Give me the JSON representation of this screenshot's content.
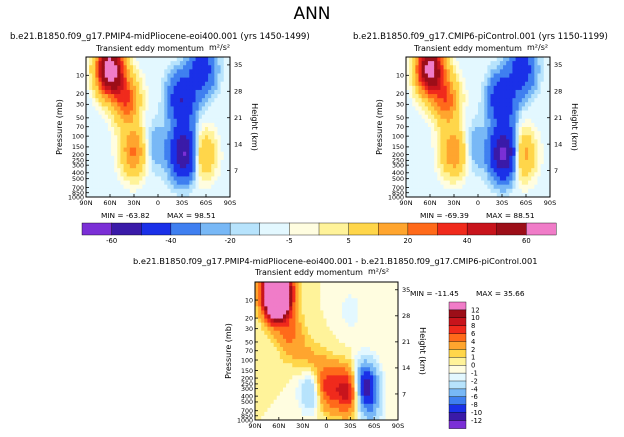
{
  "page": {
    "title": "ANN"
  },
  "colors": {
    "palette": [
      "#7b2fd6",
      "#3a1aa8",
      "#1a30e8",
      "#3f7ff0",
      "#78b8f6",
      "#b7e3fc",
      "#e3f8ff",
      "#fffde0",
      "#fff39a",
      "#ffd64a",
      "#ffa52e",
      "#ff6a1a",
      "#f02a1c",
      "#c8141c",
      "#9c0e18",
      "#f07cc8"
    ]
  },
  "chart_data": [
    {
      "type": "contour",
      "name": "panel-left",
      "title": "b.e21.B1850.f09_g17.PMIP4-midPliocene-eoi400.001  (yrs 1450-1499)",
      "subtitle": "Transient eddy momentum",
      "units": "m²/s²",
      "xlabel": "",
      "ylabel": "Pressure (mb)",
      "y2label": "Height (km)",
      "x_ticks": [
        "90N",
        "60N",
        "30N",
        "0",
        "30S",
        "60S",
        "90S"
      ],
      "y_ticks": [
        "10",
        "20",
        "30",
        "50",
        "70",
        "100",
        "150",
        "200",
        "250",
        "300",
        "400",
        "500",
        "700",
        "850",
        "1000"
      ],
      "y2_ticks": [
        "35",
        "28",
        "21",
        "14",
        "7"
      ],
      "min_label": "MIN = -63.82",
      "max_label": "MAX = 98.51",
      "xlim": [
        90,
        -90
      ],
      "ylim": [
        1000,
        5
      ],
      "blobs": [
        {
          "lat": 60,
          "p": 8,
          "value": 98.5
        },
        {
          "lat": 40,
          "p": 25,
          "value": 40
        },
        {
          "lat": 30,
          "p": 180,
          "value": 32
        },
        {
          "lat": 5,
          "p": 150,
          "value": -10
        },
        {
          "lat": -30,
          "p": 25,
          "value": -40
        },
        {
          "lat": -33,
          "p": 190,
          "value": -63.8
        },
        {
          "lat": -55,
          "p": 200,
          "value": 25
        },
        {
          "lat": -55,
          "p": 8,
          "value": -30
        }
      ]
    },
    {
      "type": "contour",
      "name": "panel-right",
      "title": "b.e21.B1850.f09_g17.CMIP6-piControl.001  (yrs 1150-1199)",
      "subtitle": "Transient eddy momentum",
      "units": "m²/s²",
      "xlabel": "",
      "ylabel": "Pressure (mb)",
      "y2label": "Height (km)",
      "x_ticks": [
        "90N",
        "60N",
        "30N",
        "0",
        "30S",
        "60S",
        "90S"
      ],
      "y_ticks": [
        "10",
        "20",
        "30",
        "50",
        "70",
        "100",
        "150",
        "200",
        "250",
        "300",
        "400",
        "500",
        "700",
        "850",
        "1000"
      ],
      "y2_ticks": [
        "35",
        "28",
        "21",
        "14",
        "7"
      ],
      "min_label": "MIN = -69.39",
      "max_label": "MAX = 88.51",
      "xlim": [
        90,
        -90
      ],
      "ylim": [
        1000,
        5
      ],
      "blobs": [
        {
          "lat": 60,
          "p": 8,
          "value": 88.5
        },
        {
          "lat": 40,
          "p": 25,
          "value": 36
        },
        {
          "lat": 30,
          "p": 180,
          "value": 30
        },
        {
          "lat": 5,
          "p": 150,
          "value": -10
        },
        {
          "lat": -30,
          "p": 25,
          "value": -38
        },
        {
          "lat": -33,
          "p": 190,
          "value": -69.4
        },
        {
          "lat": -55,
          "p": 200,
          "value": 28
        },
        {
          "lat": -55,
          "p": 8,
          "value": -30
        }
      ]
    },
    {
      "type": "contour",
      "name": "panel-diff",
      "title": "b.e21.B1850.f09_g17.PMIP4-midPliocene-eoi400.001 - b.e21.B1850.f09_g17.CMIP6-piControl.001",
      "subtitle": "Transient eddy momentum",
      "units": "m²/s²",
      "xlabel": "",
      "ylabel": "Pressure (mb)",
      "y2label": "Height (km)",
      "x_ticks": [
        "90N",
        "60N",
        "30N",
        "0",
        "30S",
        "60S",
        "90S"
      ],
      "y_ticks": [
        "10",
        "20",
        "30",
        "50",
        "70",
        "100",
        "150",
        "200",
        "250",
        "300",
        "400",
        "500",
        "700",
        "850",
        "1000"
      ],
      "y2_ticks": [
        "35",
        "28",
        "21",
        "14",
        "7"
      ],
      "min_label": "MIN = -11.45",
      "max_label": "MAX = 35.66",
      "xlim": [
        90,
        -90
      ],
      "ylim": [
        1000,
        5
      ],
      "blobs": [
        {
          "lat": 62,
          "p": 8,
          "value": 35.7
        },
        {
          "lat": 45,
          "p": 40,
          "value": 4
        },
        {
          "lat": 20,
          "p": 120,
          "value": 3
        },
        {
          "lat": 18,
          "p": 300,
          "value": -6
        },
        {
          "lat": 0,
          "p": 280,
          "value": 8
        },
        {
          "lat": -28,
          "p": 320,
          "value": 10
        },
        {
          "lat": -48,
          "p": 250,
          "value": -11.4
        },
        {
          "lat": -55,
          "p": 600,
          "value": -4
        },
        {
          "lat": -30,
          "p": 15,
          "value": -1.5
        }
      ]
    }
  ],
  "colorbars": {
    "top": {
      "labels": [
        "-60",
        "-40",
        "-20",
        "-5",
        "5",
        "20",
        "40",
        "60"
      ]
    },
    "diff": {
      "labels": [
        "12",
        "10",
        "8",
        "6",
        "4",
        "2",
        "1",
        "0",
        "-1",
        "-2",
        "-4",
        "-6",
        "-8",
        "-10",
        "-12"
      ]
    }
  }
}
